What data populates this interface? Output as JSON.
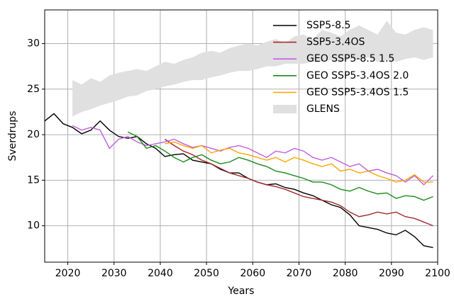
{
  "chart_data": {
    "type": "line",
    "x_label": "Years",
    "y_label": "Sverdrups",
    "x": [
      2015,
      2017,
      2019,
      2021,
      2023,
      2025,
      2027,
      2029,
      2031,
      2033,
      2035,
      2037,
      2039,
      2041,
      2043,
      2045,
      2047,
      2049,
      2051,
      2053,
      2055,
      2057,
      2059,
      2061,
      2063,
      2065,
      2067,
      2069,
      2071,
      2073,
      2075,
      2077,
      2079,
      2081,
      2083,
      2085,
      2087,
      2089,
      2091,
      2093,
      2095,
      2097,
      2099
    ],
    "xlim": [
      2015,
      2100
    ],
    "xticks": [
      2020,
      2030,
      2040,
      2050,
      2060,
      2070,
      2080,
      2090,
      2100
    ],
    "ylim": [
      6,
      33.7
    ],
    "yticks": [
      10,
      15,
      20,
      25,
      30
    ],
    "grid": true,
    "legend": "upper right",
    "series": [
      {
        "name": "SSP5-8.5",
        "color": "#000000",
        "values": [
          21.5,
          22.3,
          21.2,
          20.8,
          20.1,
          20.5,
          21.5,
          20.5,
          19.8,
          19.6,
          19.8,
          19.0,
          18.5,
          17.6,
          17.8,
          17.9,
          17.2,
          17.0,
          16.8,
          16.2,
          15.8,
          15.8,
          15.2,
          14.8,
          14.5,
          14.6,
          14.2,
          14.0,
          13.6,
          13.3,
          12.8,
          12.3,
          12.0,
          11.2,
          10.0,
          9.8,
          9.6,
          9.2,
          9.0,
          9.5,
          8.8,
          7.8,
          7.6
        ]
      },
      {
        "name": "SSP5-3.4OS",
        "color": "#a52a2a",
        "values": [
          null,
          null,
          null,
          null,
          null,
          null,
          null,
          null,
          null,
          null,
          null,
          null,
          null,
          19.5,
          18.8,
          18.2,
          17.8,
          17.2,
          16.8,
          16.3,
          15.8,
          15.5,
          15.2,
          14.8,
          14.5,
          14.3,
          14.0,
          13.6,
          13.2,
          13.0,
          12.8,
          12.6,
          12.2,
          11.5,
          11.0,
          11.2,
          11.5,
          11.3,
          11.5,
          11.0,
          10.8,
          10.4,
          10.0
        ]
      },
      {
        "name": "GEO SSP5-8.5 1.5",
        "color": "#bf5fdf",
        "values": [
          null,
          null,
          null,
          21.0,
          20.5,
          20.8,
          20.5,
          18.5,
          19.5,
          19.8,
          19.2,
          18.8,
          19.0,
          19.2,
          19.5,
          19.0,
          18.6,
          18.8,
          18.5,
          18.2,
          18.6,
          18.8,
          18.5,
          18.0,
          17.5,
          18.2,
          18.0,
          18.5,
          18.2,
          17.5,
          17.2,
          17.5,
          17.0,
          16.5,
          16.8,
          16.0,
          16.2,
          15.8,
          15.5,
          14.8,
          15.5,
          14.5,
          15.5
        ]
      },
      {
        "name": "GEO SSP5-3.4OS 2.0",
        "color": "#1a8a1a",
        "values": [
          null,
          null,
          null,
          null,
          null,
          null,
          null,
          null,
          null,
          20.3,
          19.8,
          18.5,
          18.8,
          18.2,
          17.5,
          17.0,
          17.5,
          17.8,
          17.2,
          16.8,
          17.0,
          17.5,
          17.2,
          16.8,
          16.5,
          16.0,
          15.8,
          15.5,
          15.2,
          14.8,
          14.8,
          14.5,
          14.0,
          13.8,
          14.2,
          13.8,
          13.5,
          13.6,
          13.0,
          13.3,
          13.2,
          12.8,
          13.2
        ]
      },
      {
        "name": "GEO SSP5-3.4OS 1.5",
        "color": "#ffa500",
        "values": [
          null,
          null,
          null,
          null,
          null,
          null,
          null,
          null,
          null,
          null,
          null,
          null,
          null,
          19.0,
          19.2,
          18.8,
          18.5,
          18.8,
          18.0,
          18.3,
          18.5,
          18.0,
          17.8,
          17.5,
          17.2,
          17.5,
          17.0,
          17.5,
          17.2,
          16.8,
          16.5,
          16.8,
          16.0,
          16.2,
          15.8,
          16.0,
          15.5,
          15.2,
          14.8,
          15.0,
          15.6,
          14.8,
          14.8
        ]
      },
      {
        "name": "GLENS",
        "color": "#e0e0e0",
        "kind": "band",
        "lower": [
          null,
          null,
          null,
          22.0,
          22.5,
          22.8,
          23.2,
          23.5,
          23.8,
          24.2,
          24.3,
          24.8,
          25.0,
          25.3,
          25.5,
          25.8,
          26.0,
          26.0,
          26.3,
          26.5,
          26.8,
          27.0,
          27.0,
          27.2,
          27.5,
          27.5,
          27.8,
          27.8,
          27.8,
          28.0,
          28.0,
          28.2,
          28.0,
          28.3,
          28.2,
          28.5,
          28.0,
          28.2,
          28.0,
          28.3,
          28.5,
          28.2,
          28.5
        ],
        "upper": [
          null,
          null,
          null,
          26.0,
          25.5,
          26.2,
          25.8,
          26.5,
          26.8,
          27.0,
          27.2,
          27.0,
          27.5,
          28.0,
          27.8,
          28.2,
          28.5,
          29.0,
          29.2,
          29.0,
          29.5,
          29.8,
          30.0,
          29.8,
          30.2,
          30.5,
          30.0,
          30.8,
          31.0,
          30.5,
          31.5,
          31.2,
          30.8,
          31.5,
          32.0,
          31.5,
          31.0,
          32.5,
          31.2,
          31.0,
          31.5,
          31.8,
          31.5
        ]
      }
    ]
  }
}
